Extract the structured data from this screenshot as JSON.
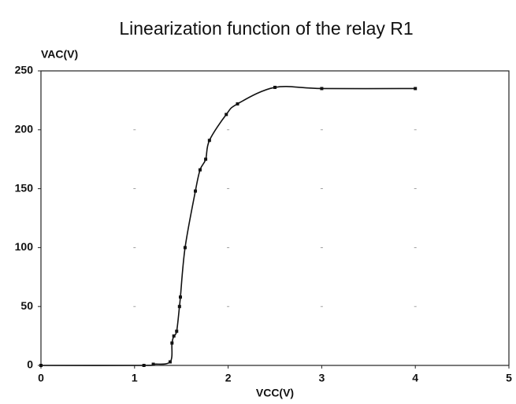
{
  "chart_data": {
    "type": "scatter",
    "title": "Linearization function of the relay R1",
    "x_label": "VCC(V)",
    "y_label": "VAC(V)",
    "series": [
      {
        "color": "#111111",
        "x": [
          0,
          1.1,
          1.2,
          1.38,
          1.4,
          1.42,
          1.45,
          1.48,
          1.49,
          1.54,
          1.65,
          1.7,
          1.76,
          1.8,
          1.98,
          2.1,
          2.5,
          3,
          4
        ],
        "values": [
          0,
          0,
          1,
          3,
          19,
          25,
          29,
          50,
          58,
          100,
          148,
          166,
          175,
          191,
          213,
          222,
          236,
          235,
          235
        ]
      }
    ],
    "xlim": [
      0,
      5
    ],
    "xticks": [
      0,
      1,
      2,
      3,
      4,
      5
    ],
    "ylim": [
      0,
      250
    ],
    "yticks": [
      0,
      50,
      100,
      150,
      200,
      250
    ],
    "grid": true,
    "line": true
  }
}
